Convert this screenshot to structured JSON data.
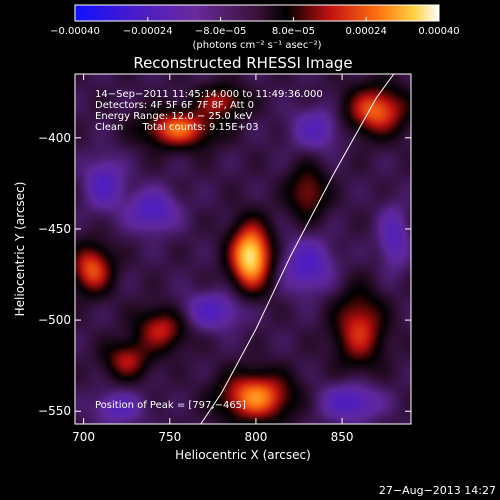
{
  "chart_data": {
    "type": "heatmap",
    "title": "Reconstructed RHESSI Image",
    "xlabel": "Heliocentric X (arcsec)",
    "ylabel": "Heliocentric Y (arcsec)",
    "xlim": [
      695,
      890
    ],
    "ylim": [
      -557,
      -365
    ],
    "x_ticks": [
      700,
      750,
      800,
      850
    ],
    "x_tick_labels": [
      "700",
      "750",
      "800",
      "850"
    ],
    "y_ticks": [
      -400,
      -450,
      -500,
      -550
    ],
    "y_tick_labels": [
      "−400",
      "−450",
      "−500",
      "−550"
    ],
    "colorbar": {
      "ticks": [
        -0.0004,
        -0.00024,
        -8e-05,
        8e-05,
        0.00024,
        0.0004
      ],
      "tick_labels": [
        "−0.00040",
        "−0.00024",
        "−8.0e−05",
        "8.0e−05",
        "0.00024",
        "0.00040"
      ],
      "unit_label": "(photons cm⁻² s⁻¹ asec⁻²)",
      "range": [
        -0.0004,
        0.0004
      ]
    },
    "annotations": [
      "14−Sep−2011 11:45:14.000 to 11:49:36.000",
      "Detectors: 4F 5F 6F 7F 8F, Att 0",
      "Energy Range: 12.0 − 25.0 keV",
      "Clean      Total counts: 9.15E+03"
    ],
    "peak_label": "Position of Peak = [797,−465]",
    "peak": {
      "x": 797,
      "y": -465
    },
    "footer_date": "27−Aug−2013 14:27",
    "limb_curve": {
      "x": [
        768,
        780,
        800,
        820,
        845,
        870,
        880
      ],
      "y": [
        -557,
        -540,
        -505,
        -465,
        -420,
        -378,
        -365
      ]
    },
    "blobs": [
      {
        "x": 797,
        "y": -465,
        "sx": 8,
        "sy": 12,
        "a": 1.15
      },
      {
        "x": 705,
        "y": -472,
        "sx": 8,
        "sy": 9,
        "a": 0.7
      },
      {
        "x": 755,
        "y": -395,
        "sx": 14,
        "sy": 7,
        "a": 0.75
      },
      {
        "x": 870,
        "y": -385,
        "sx": 12,
        "sy": 9,
        "a": 0.75
      },
      {
        "x": 745,
        "y": -505,
        "sx": 10,
        "sy": 8,
        "a": 0.55
      },
      {
        "x": 725,
        "y": -522,
        "sx": 9,
        "sy": 7,
        "a": 0.5
      },
      {
        "x": 800,
        "y": -542,
        "sx": 14,
        "sy": 9,
        "a": 0.85
      },
      {
        "x": 860,
        "y": -505,
        "sx": 10,
        "sy": 14,
        "a": 0.6
      },
      {
        "x": 830,
        "y": -430,
        "sx": 8,
        "sy": 10,
        "a": 0.45
      },
      {
        "x": 780,
        "y": -380,
        "sx": 10,
        "sy": 6,
        "a": 0.5
      },
      {
        "x": 740,
        "y": -440,
        "sx": 10,
        "sy": 8,
        "a": -0.5
      },
      {
        "x": 712,
        "y": -425,
        "sx": 8,
        "sy": 10,
        "a": -0.45
      },
      {
        "x": 775,
        "y": -495,
        "sx": 12,
        "sy": 7,
        "a": -0.45
      },
      {
        "x": 830,
        "y": -470,
        "sx": 10,
        "sy": 10,
        "a": -0.5
      },
      {
        "x": 855,
        "y": -545,
        "sx": 12,
        "sy": 7,
        "a": -0.5
      },
      {
        "x": 835,
        "y": -395,
        "sx": 10,
        "sy": 8,
        "a": -0.4
      },
      {
        "x": 720,
        "y": -548,
        "sx": 10,
        "sy": 6,
        "a": -0.4
      },
      {
        "x": 880,
        "y": -455,
        "sx": 6,
        "sy": 12,
        "a": -0.4
      }
    ]
  }
}
